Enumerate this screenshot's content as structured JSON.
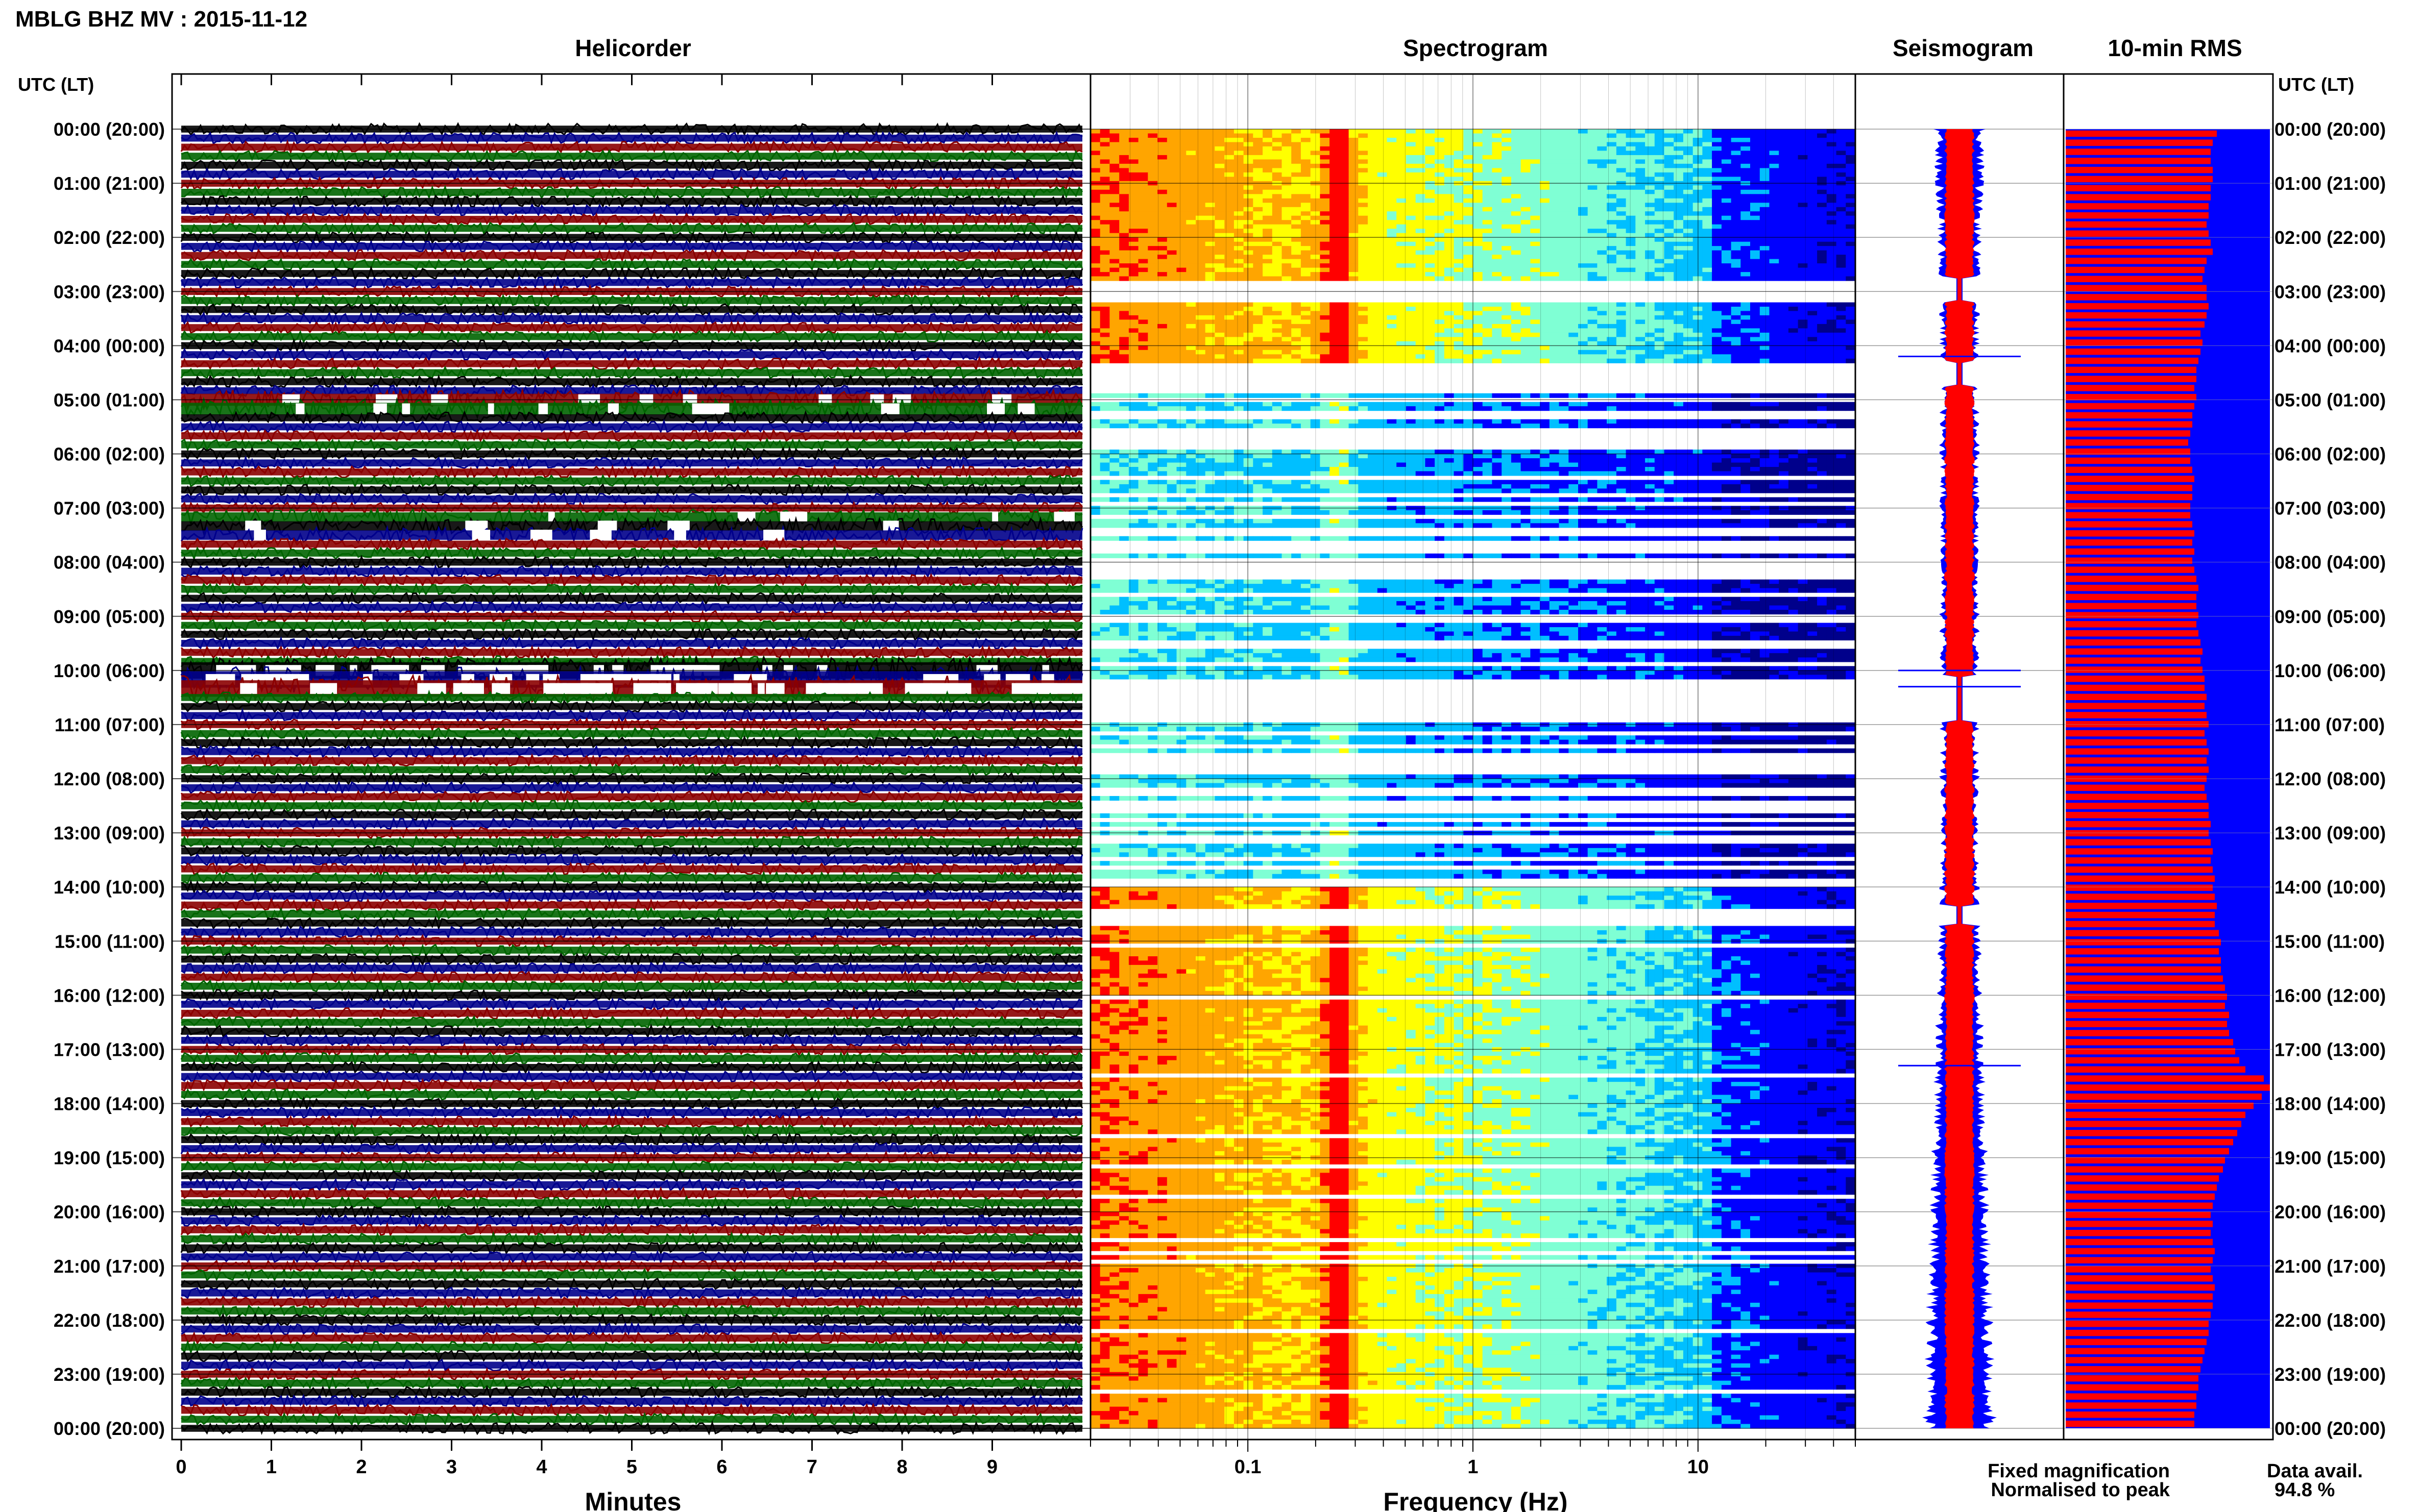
{
  "figure": {
    "title": "MBLG BHZ MV : 2015-11-12",
    "time_axis_label": "UTC (LT)",
    "hour_labels": [
      "00:00 (20:00)",
      "01:00 (21:00)",
      "02:00 (22:00)",
      "03:00 (23:00)",
      "04:00 (00:00)",
      "05:00 (01:00)",
      "06:00 (02:00)",
      "07:00 (03:00)",
      "08:00 (04:00)",
      "09:00 (05:00)",
      "10:00 (06:00)",
      "11:00 (07:00)",
      "12:00 (08:00)",
      "13:00 (09:00)",
      "14:00 (10:00)",
      "15:00 (11:00)",
      "16:00 (12:00)",
      "17:00 (13:00)",
      "18:00 (14:00)",
      "19:00 (15:00)",
      "20:00 (16:00)",
      "21:00 (17:00)",
      "22:00 (18:00)",
      "23:00 (19:00)",
      "00:00 (20:00)"
    ],
    "legend": {
      "fixed_label": "Fixed magnification",
      "normalised_label": "Normalised to peak",
      "fixed_color": "#0000ff",
      "normalised_color": "#ff0000"
    },
    "data_avail_label": "Data avail.",
    "data_avail_value": "94.8 %"
  },
  "chart_data": [
    {
      "type": "line",
      "title": "Helicorder",
      "xlabel": "Minutes",
      "x_ticks": [
        "0",
        "1",
        "2",
        "3",
        "4",
        "5",
        "6",
        "7",
        "8",
        "9"
      ],
      "xlim": [
        0,
        10
      ],
      "rows_per_hour": 6,
      "trace_colors": [
        "#000000",
        "#00008b",
        "#8b0000",
        "#006400"
      ],
      "gaps": [
        {
          "start_hour": 10.0,
          "end_hour": 10.5,
          "severity": "high"
        },
        {
          "start_hour": 4.9,
          "end_hour": 5.2,
          "severity": "medium"
        },
        {
          "start_hour": 7.1,
          "end_hour": 7.6,
          "severity": "low"
        }
      ]
    },
    {
      "type": "heatmap",
      "title": "Spectrogram",
      "xlabel": "Frequency (Hz)",
      "x_scale": "log",
      "xlim": [
        0.02,
        50
      ],
      "x_ticks": [
        "0.1",
        "1",
        "10"
      ],
      "colormap": [
        "#00008b",
        "#0000ff",
        "#00bfff",
        "#7fffd4",
        "#ffff00",
        "#ffa500",
        "#ff0000"
      ],
      "peak_frequency_hz": 0.25,
      "gap_bands_hours": [
        [
          2.75,
          3.2
        ],
        [
          4.3,
          4.75
        ],
        [
          10.1,
          10.95
        ],
        [
          14.35,
          14.7
        ]
      ]
    },
    {
      "type": "line",
      "title": "Seismogram",
      "series": [
        {
          "name": "Fixed magnification",
          "color": "#0000ff"
        },
        {
          "name": "Normalised to peak",
          "color": "#ff0000"
        }
      ]
    },
    {
      "type": "bar",
      "title": "10-min RMS",
      "series": [
        {
          "name": "Fixed magnification",
          "color": "#0000ff",
          "values": [
            1.0
          ]
        },
        {
          "name": "Normalised to peak",
          "color": "#ff0000",
          "values": [
            0.74,
            0.72,
            0.71,
            0.71,
            0.72,
            0.72,
            0.71,
            0.71,
            0.7,
            0.7,
            0.69,
            0.7,
            0.71,
            0.72,
            0.69,
            0.68,
            0.67,
            0.69,
            0.69,
            0.7,
            0.69,
            0.68,
            0.66,
            0.67,
            0.66,
            0.65,
            0.64,
            0.64,
            0.63,
            0.64,
            0.63,
            0.62,
            0.62,
            0.61,
            0.6,
            0.61,
            0.61,
            0.62,
            0.63,
            0.62,
            0.62,
            0.61,
            0.61,
            0.62,
            0.63,
            0.62,
            0.63,
            0.62,
            0.63,
            0.64,
            0.65,
            0.64,
            0.64,
            0.65,
            0.64,
            0.65,
            0.66,
            0.67,
            0.66,
            0.67,
            0.68,
            0.68,
            0.69,
            0.68,
            0.69,
            0.7,
            0.68,
            0.69,
            0.7,
            0.69,
            0.7,
            0.69,
            0.68,
            0.69,
            0.7,
            0.7,
            0.71,
            0.7,
            0.71,
            0.72,
            0.71,
            0.72,
            0.73,
            0.72,
            0.73,
            0.74,
            0.73,
            0.73,
            0.75,
            0.76,
            0.75,
            0.76,
            0.76,
            0.77,
            0.78,
            0.79,
            0.78,
            0.8,
            0.79,
            0.8,
            0.82,
            0.83,
            0.85,
            0.88,
            0.97,
            1.0,
            0.96,
            0.92,
            0.88,
            0.86,
            0.84,
            0.82,
            0.8,
            0.78,
            0.77,
            0.75,
            0.74,
            0.73,
            0.72,
            0.71,
            0.72,
            0.71,
            0.72,
            0.73,
            0.72,
            0.71,
            0.72,
            0.73,
            0.72,
            0.72,
            0.71,
            0.7,
            0.7,
            0.69,
            0.68,
            0.67,
            0.66,
            0.65,
            0.65,
            0.64,
            0.64,
            0.63,
            0.63
          ]
        }
      ]
    }
  ]
}
